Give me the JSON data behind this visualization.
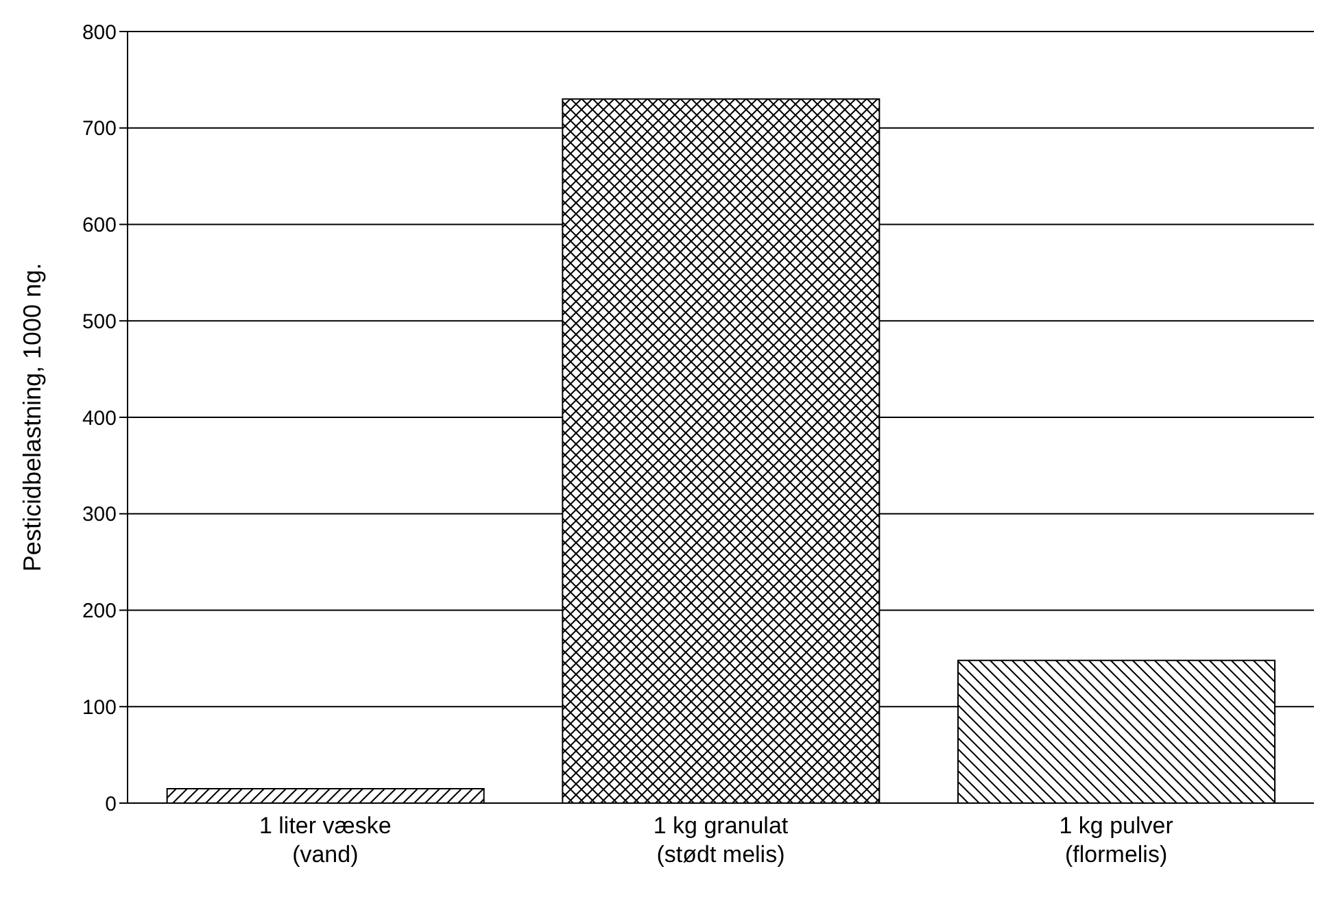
{
  "chart_data": {
    "type": "bar",
    "ylabel": "Pesticidbelastning, 1000 ng.",
    "categories": [
      "1 liter væske\n(vand)",
      "1 kg granulat\n(stødt melis)",
      "1 kg pulver\n(flormelis)"
    ],
    "values": [
      15,
      730,
      148
    ],
    "colors": [
      "#000000",
      "#000000",
      "#000000"
    ],
    "ylim": [
      0,
      800
    ],
    "yticks": [
      0,
      100,
      200,
      300,
      400,
      500,
      600,
      700,
      800
    ],
    "grid": "y"
  }
}
